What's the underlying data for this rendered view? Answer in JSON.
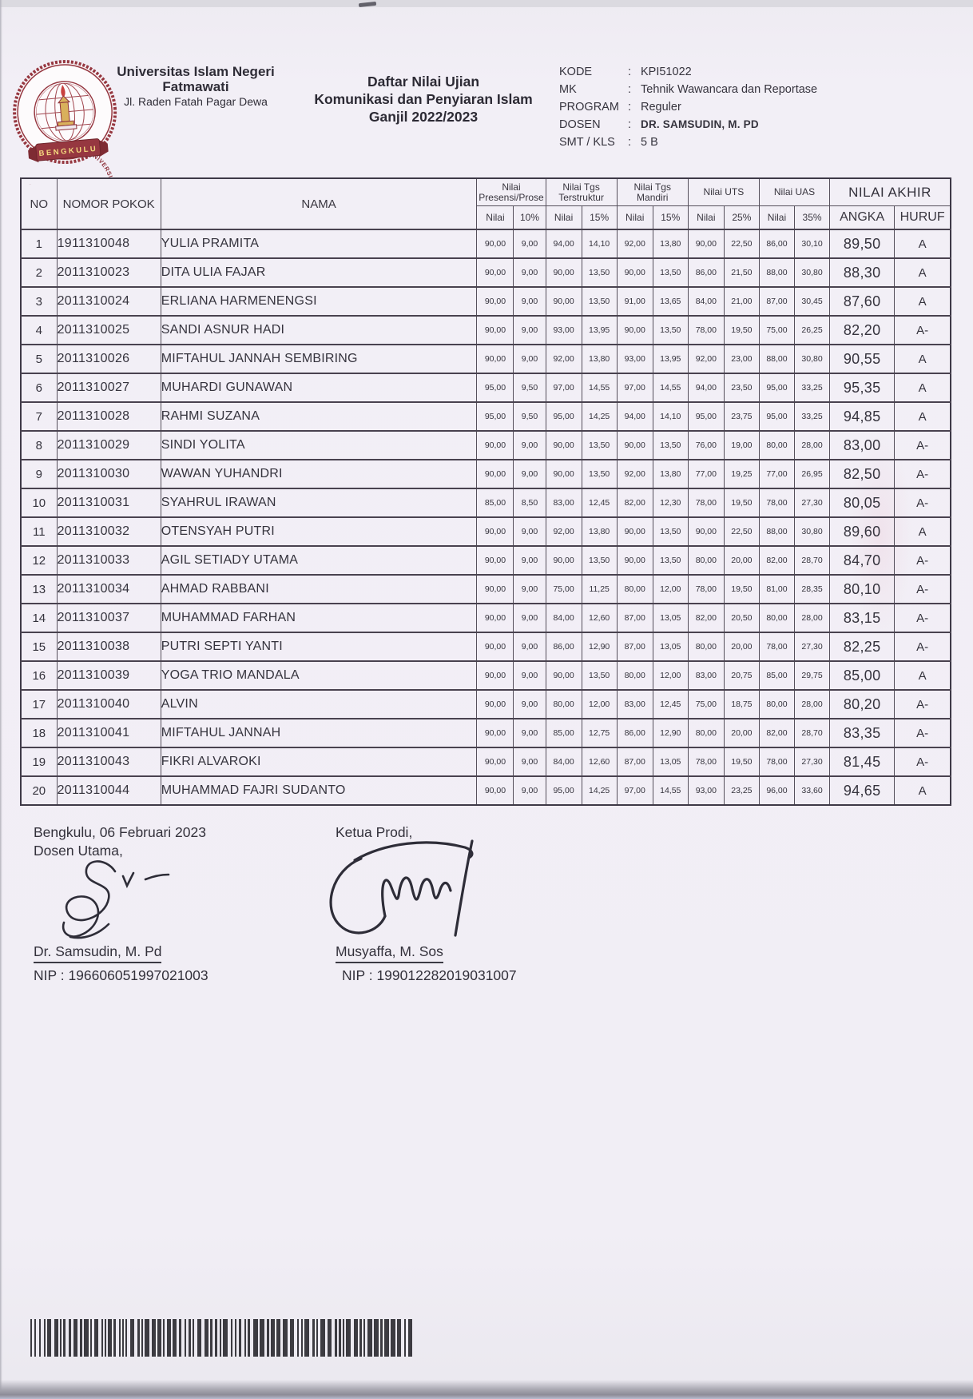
{
  "header": {
    "logo": {
      "ring_text": "UNIVERSITAS ISLAM NEGERI FATMAWATI SUKARNO",
      "banner": "BENGKULU"
    },
    "university": {
      "line1": "Universitas Islam Negeri",
      "line2": "Fatmawati",
      "address": "Jl. Raden Fatah Pagar Dewa"
    },
    "title": {
      "line1": "Daftar Nilai Ujian",
      "line2": "Komunikasi dan Penyiaran Islam",
      "line3": "Ganjil 2022/2023"
    },
    "separator": ":",
    "meta": [
      {
        "label": "KODE",
        "value": "KPI51022"
      },
      {
        "label": "MK",
        "value": "Tehnik Wawancara dan Reportase"
      },
      {
        "label": "PROGRAM",
        "value": "Reguler"
      },
      {
        "label": "DOSEN",
        "value": "DR. SAMSUDIN, M. PD"
      },
      {
        "label": "SMT / KLS",
        "value": "5 B"
      }
    ]
  },
  "table": {
    "headers": {
      "no": "NO",
      "nomor_pokok": "NOMOR POKOK",
      "nama": "NAMA",
      "groups": [
        {
          "line1": "Nilai",
          "line2": "Presensi/Prose",
          "sub": [
            "Nilai",
            "10%"
          ]
        },
        {
          "line1": "Nilai Tgs",
          "line2": "Terstruktur",
          "sub": [
            "Nilai",
            "15%"
          ]
        },
        {
          "line1": "Nilai Tgs",
          "line2": "Mandiri",
          "sub": [
            "Nilai",
            "15%"
          ]
        },
        {
          "line1": "Nilai UTS",
          "line2": "",
          "sub": [
            "Nilai",
            "25%"
          ]
        },
        {
          "line1": "Nilai UAS",
          "line2": "",
          "sub": [
            "Nilai",
            "35%"
          ]
        }
      ],
      "nilai_akhir": {
        "label": "NILAI AKHIR",
        "sub": [
          "ANGKA",
          "HURUF"
        ]
      }
    },
    "rows": [
      [
        "1",
        "1911310048",
        "YULIA PRAMITA",
        "90,00",
        "9,00",
        "94,00",
        "14,10",
        "92,00",
        "13,80",
        "90,00",
        "22,50",
        "86,00",
        "30,10",
        "89,50",
        "A"
      ],
      [
        "2",
        "2011310023",
        "DITA ULIA FAJAR",
        "90,00",
        "9,00",
        "90,00",
        "13,50",
        "90,00",
        "13,50",
        "86,00",
        "21,50",
        "88,00",
        "30,80",
        "88,30",
        "A"
      ],
      [
        "3",
        "2011310024",
        "ERLIANA HARMENENGSI",
        "90,00",
        "9,00",
        "90,00",
        "13,50",
        "91,00",
        "13,65",
        "84,00",
        "21,00",
        "87,00",
        "30,45",
        "87,60",
        "A"
      ],
      [
        "4",
        "2011310025",
        "SANDI ASNUR HADI",
        "90,00",
        "9,00",
        "93,00",
        "13,95",
        "90,00",
        "13,50",
        "78,00",
        "19,50",
        "75,00",
        "26,25",
        "82,20",
        "A-"
      ],
      [
        "5",
        "2011310026",
        "MIFTAHUL JANNAH SEMBIRING",
        "90,00",
        "9,00",
        "92,00",
        "13,80",
        "93,00",
        "13,95",
        "92,00",
        "23,00",
        "88,00",
        "30,80",
        "90,55",
        "A"
      ],
      [
        "6",
        "2011310027",
        "MUHARDI GUNAWAN",
        "95,00",
        "9,50",
        "97,00",
        "14,55",
        "97,00",
        "14,55",
        "94,00",
        "23,50",
        "95,00",
        "33,25",
        "95,35",
        "A"
      ],
      [
        "7",
        "2011310028",
        "RAHMI SUZANA",
        "95,00",
        "9,50",
        "95,00",
        "14,25",
        "94,00",
        "14,10",
        "95,00",
        "23,75",
        "95,00",
        "33,25",
        "94,85",
        "A"
      ],
      [
        "8",
        "2011310029",
        "SINDI YOLITA",
        "90,00",
        "9,00",
        "90,00",
        "13,50",
        "90,00",
        "13,50",
        "76,00",
        "19,00",
        "80,00",
        "28,00",
        "83,00",
        "A-"
      ],
      [
        "9",
        "2011310030",
        "WAWAN YUHANDRI",
        "90,00",
        "9,00",
        "90,00",
        "13,50",
        "92,00",
        "13,80",
        "77,00",
        "19,25",
        "77,00",
        "26,95",
        "82,50",
        "A-"
      ],
      [
        "10",
        "2011310031",
        "SYAHRUL IRAWAN",
        "85,00",
        "8,50",
        "83,00",
        "12,45",
        "82,00",
        "12,30",
        "78,00",
        "19,50",
        "78,00",
        "27,30",
        "80,05",
        "A-"
      ],
      [
        "11",
        "2011310032",
        "OTENSYAH PUTRI",
        "90,00",
        "9,00",
        "92,00",
        "13,80",
        "90,00",
        "13,50",
        "90,00",
        "22,50",
        "88,00",
        "30,80",
        "89,60",
        "A"
      ],
      [
        "12",
        "2011310033",
        "AGIL SETIADY UTAMA",
        "90,00",
        "9,00",
        "90,00",
        "13,50",
        "90,00",
        "13,50",
        "80,00",
        "20,00",
        "82,00",
        "28,70",
        "84,70",
        "A-"
      ],
      [
        "13",
        "2011310034",
        "AHMAD RABBANI",
        "90,00",
        "9,00",
        "75,00",
        "11,25",
        "80,00",
        "12,00",
        "78,00",
        "19,50",
        "81,00",
        "28,35",
        "80,10",
        "A-"
      ],
      [
        "14",
        "2011310037",
        "MUHAMMAD FARHAN",
        "90,00",
        "9,00",
        "84,00",
        "12,60",
        "87,00",
        "13,05",
        "82,00",
        "20,50",
        "80,00",
        "28,00",
        "83,15",
        "A-"
      ],
      [
        "15",
        "2011310038",
        "PUTRI SEPTI YANTI",
        "90,00",
        "9,00",
        "86,00",
        "12,90",
        "87,00",
        "13,05",
        "80,00",
        "20,00",
        "78,00",
        "27,30",
        "82,25",
        "A-"
      ],
      [
        "16",
        "2011310039",
        "YOGA TRIO MANDALA",
        "90,00",
        "9,00",
        "90,00",
        "13,50",
        "80,00",
        "12,00",
        "83,00",
        "20,75",
        "85,00",
        "29,75",
        "85,00",
        "A"
      ],
      [
        "17",
        "2011310040",
        "ALVIN",
        "90,00",
        "9,00",
        "80,00",
        "12,00",
        "83,00",
        "12,45",
        "75,00",
        "18,75",
        "80,00",
        "28,00",
        "80,20",
        "A-"
      ],
      [
        "18",
        "2011310041",
        "MIFTAHUL JANNAH",
        "90,00",
        "9,00",
        "85,00",
        "12,75",
        "86,00",
        "12,90",
        "80,00",
        "20,00",
        "82,00",
        "28,70",
        "83,35",
        "A-"
      ],
      [
        "19",
        "2011310043",
        "FIKRI ALVAROKI",
        "90,00",
        "9,00",
        "84,00",
        "12,60",
        "87,00",
        "13,05",
        "78,00",
        "19,50",
        "78,00",
        "27,30",
        "81,45",
        "A-"
      ],
      [
        "20",
        "2011310044",
        "MUHAMMAD FAJRI SUDANTO",
        "90,00",
        "9,00",
        "95,00",
        "14,25",
        "97,00",
        "14,55",
        "93,00",
        "23,25",
        "96,00",
        "33,60",
        "94,65",
        "A"
      ]
    ]
  },
  "footer": {
    "place_date": "Bengkulu, 06 Februari 2023",
    "left_role": "Dosen Utama,",
    "left_name": "Dr. Samsudin, M. Pd",
    "left_nip": "NIP : 196606051997021003",
    "right_role": "Ketua Prodi,",
    "right_name": "Musyaffa, M. Sos",
    "right_nip": "NIP : 199012282019031007"
  }
}
